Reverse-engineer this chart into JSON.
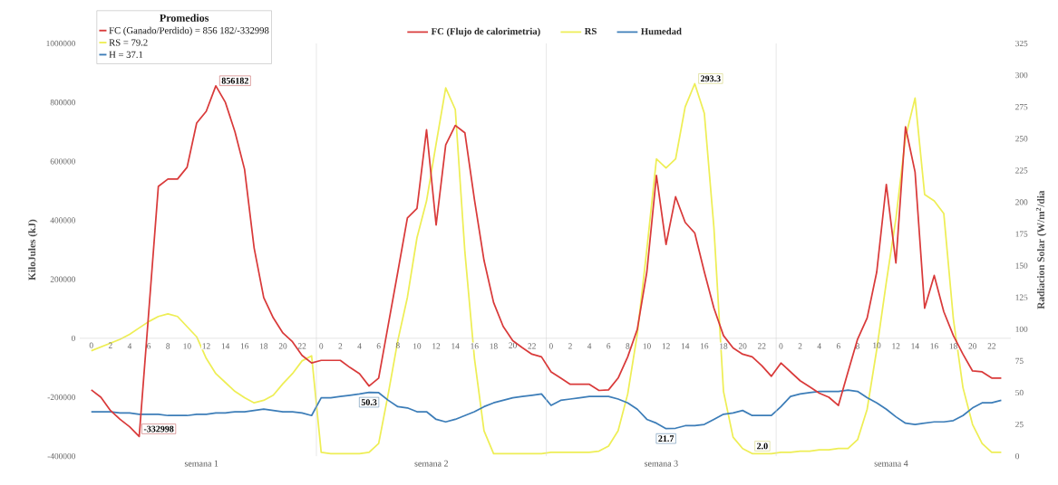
{
  "chart_data": {
    "type": "line",
    "categories": [
      "0",
      null,
      "2",
      null,
      "4",
      null,
      "6",
      null,
      "8",
      null,
      "10",
      null,
      "12",
      null,
      "14",
      null,
      "16",
      null,
      "18",
      null,
      "20",
      null,
      "22",
      null,
      "0",
      null,
      "2",
      null,
      "4",
      null,
      "6",
      null,
      "8",
      null,
      "10",
      null,
      "12",
      null,
      "14",
      null,
      "16",
      null,
      "18",
      null,
      "20",
      null,
      "22",
      null,
      "0",
      null,
      "2",
      null,
      "4",
      null,
      "6",
      null,
      "8",
      null,
      "10",
      null,
      "12",
      null,
      "14",
      null,
      "16",
      null,
      "18",
      null,
      "20",
      null,
      "22",
      null,
      "0",
      null,
      "2",
      null,
      "4",
      null,
      "6",
      null,
      "8",
      null,
      "10",
      null,
      "12",
      null,
      "14",
      null,
      "16",
      null,
      "18",
      null,
      "20",
      null,
      "22",
      null
    ],
    "series": [
      {
        "name": "FC (Flujo de calorimetria)",
        "color": "#d93a3a",
        "values": [
          -175000,
          -200000,
          -245000,
          -275000,
          -300000,
          -332998,
          90000,
          515000,
          540000,
          540000,
          580000,
          730000,
          770000,
          856182,
          800000,
          700000,
          573000,
          306000,
          138000,
          69000,
          18000,
          -12000,
          -58000,
          -84000,
          -75000,
          -75000,
          -75000,
          -99000,
          -120000,
          -162000,
          -135000,
          45000,
          225000,
          408000,
          440000,
          707000,
          384000,
          656000,
          722000,
          697000,
          470000,
          264000,
          121000,
          40000,
          -8000,
          -32000,
          -54000,
          -63000,
          -114000,
          -135000,
          -156000,
          -156000,
          -156000,
          -177000,
          -175000,
          -135000,
          -63000,
          30000,
          225000,
          552000,
          318000,
          480000,
          393000,
          357000,
          225000,
          102000,
          9000,
          -33000,
          -54000,
          -63000,
          -93000,
          -129000,
          -84000,
          -114000,
          -144000,
          -165000,
          -186000,
          -200000,
          -228000,
          -114000,
          -3000,
          69000,
          225000,
          522000,
          255000,
          717000,
          564000,
          102000,
          213000,
          90000,
          9000,
          -54000,
          -111000,
          -114000,
          -135000,
          -135000
        ],
        "value_labels": [
          null,
          null,
          null,
          null,
          null,
          "-332998",
          null,
          null,
          null,
          null,
          null,
          null,
          null,
          "856182",
          null,
          null,
          null,
          null,
          null,
          null,
          null,
          null,
          null,
          null,
          null,
          null,
          null,
          null,
          null,
          null,
          null,
          null,
          null,
          null,
          null,
          null,
          null,
          null,
          null,
          null,
          null,
          null,
          null,
          null,
          null,
          null,
          null,
          null,
          null,
          null,
          null,
          null,
          null,
          null,
          null,
          null,
          null,
          null,
          null,
          null,
          null,
          null,
          null,
          null,
          null,
          null,
          null,
          null,
          null,
          null,
          null,
          null,
          null,
          null,
          null,
          null,
          null,
          null,
          null,
          null,
          null,
          null,
          null,
          null,
          null,
          null,
          null,
          null,
          null,
          null,
          null,
          null,
          null,
          null,
          null,
          null
        ]
      },
      {
        "name": "RS",
        "color": "#eeee55",
        "axis": "y2",
        "values": [
          83,
          86,
          89,
          92,
          96,
          101,
          106,
          110,
          112,
          110,
          102,
          94,
          77,
          65,
          58,
          51,
          46,
          42,
          44,
          48,
          57,
          65,
          75,
          79,
          3,
          2,
          2,
          2,
          2,
          3,
          10,
          49,
          91,
          125,
          172,
          201,
          246,
          290,
          273,
          161,
          77,
          20,
          2,
          2,
          2,
          2,
          2,
          2,
          3,
          3,
          3,
          3,
          3,
          4,
          8,
          20,
          49,
          96,
          163,
          234,
          227,
          234,
          275,
          293.3,
          270,
          180,
          51,
          15,
          6,
          2.0,
          2,
          2,
          3,
          3,
          4,
          4,
          5,
          5,
          6,
          6,
          13,
          37,
          84,
          137,
          187,
          251,
          282,
          206,
          201,
          191,
          108,
          54,
          25,
          10,
          3,
          3
        ],
        "value_labels": [
          null,
          null,
          null,
          null,
          null,
          null,
          null,
          null,
          null,
          null,
          null,
          null,
          null,
          null,
          null,
          null,
          null,
          null,
          null,
          null,
          null,
          null,
          null,
          null,
          null,
          null,
          null,
          null,
          null,
          null,
          null,
          null,
          null,
          null,
          null,
          null,
          null,
          null,
          null,
          null,
          null,
          null,
          null,
          null,
          null,
          null,
          null,
          null,
          null,
          null,
          null,
          null,
          null,
          null,
          null,
          null,
          null,
          null,
          null,
          null,
          null,
          null,
          null,
          "293.3",
          null,
          null,
          null,
          null,
          null,
          "2.0",
          null,
          null,
          null,
          null,
          null,
          null,
          null,
          null,
          null,
          null,
          null,
          null,
          null,
          null,
          null,
          null,
          null,
          null,
          null,
          null,
          null,
          null,
          null,
          null,
          null,
          null
        ]
      },
      {
        "name": "Humedad",
        "color": "#3c7db8",
        "axis": "y2",
        "values": [
          35,
          35,
          35,
          34,
          34,
          33,
          33,
          33,
          32,
          32,
          32,
          33,
          33,
          34,
          34,
          35,
          35,
          36,
          37,
          36,
          35,
          35,
          34,
          32,
          46,
          46,
          47,
          48,
          49,
          50.3,
          50,
          44,
          39,
          38,
          35,
          35,
          29,
          27,
          29,
          32,
          35,
          39,
          42,
          44,
          46,
          47,
          48,
          49,
          40,
          44,
          45,
          46,
          47,
          47,
          47,
          45,
          42,
          37,
          29,
          26,
          21.7,
          22,
          24,
          24,
          25,
          29,
          33,
          34,
          36,
          32,
          32,
          32,
          39,
          47,
          49,
          50,
          51,
          51,
          51,
          52,
          51,
          46,
          42,
          37,
          31,
          26,
          25,
          26,
          27,
          27,
          28,
          32,
          38,
          42,
          42,
          44
        ],
        "value_labels": [
          null,
          null,
          null,
          null,
          null,
          null,
          null,
          null,
          null,
          null,
          null,
          null,
          null,
          null,
          null,
          null,
          null,
          null,
          null,
          null,
          null,
          null,
          null,
          null,
          null,
          null,
          null,
          null,
          null,
          "50.3",
          null,
          null,
          null,
          null,
          null,
          null,
          null,
          null,
          null,
          null,
          null,
          null,
          null,
          null,
          null,
          null,
          null,
          null,
          null,
          null,
          null,
          null,
          null,
          null,
          null,
          null,
          null,
          null,
          null,
          null,
          "21.7",
          null,
          null,
          null,
          null,
          null,
          null,
          null,
          null,
          null,
          null,
          null,
          null,
          null,
          null,
          null,
          null,
          null,
          null,
          null,
          null,
          null,
          null,
          null,
          null,
          null,
          null,
          null,
          null,
          null,
          null,
          null,
          null,
          null,
          null,
          null
        ]
      }
    ],
    "ylabel": "KiloJules (kJ)",
    "y2label": "Radiacion Solar (W/m$^{2}$/dia",
    "ylim": [
      -400000,
      1000000
    ],
    "yticks": [
      -400000,
      -200000,
      0,
      200000,
      400000,
      600000,
      800000,
      1000000
    ],
    "y2lim": [
      0,
      325
    ],
    "y2ticks": [
      0,
      25,
      50,
      75,
      100,
      125,
      150,
      175,
      200,
      225,
      250,
      275,
      300,
      325
    ],
    "legend": "top",
    "marker": "none",
    "annotations": [
      "semana 1",
      "semana 2",
      "semana 3",
      "semana 4",
      "Promedios",
      "FC (Ganado/Perdido) = 856 182/-332998",
      "RS   = 79.2",
      "H    = 37.1"
    ]
  }
}
